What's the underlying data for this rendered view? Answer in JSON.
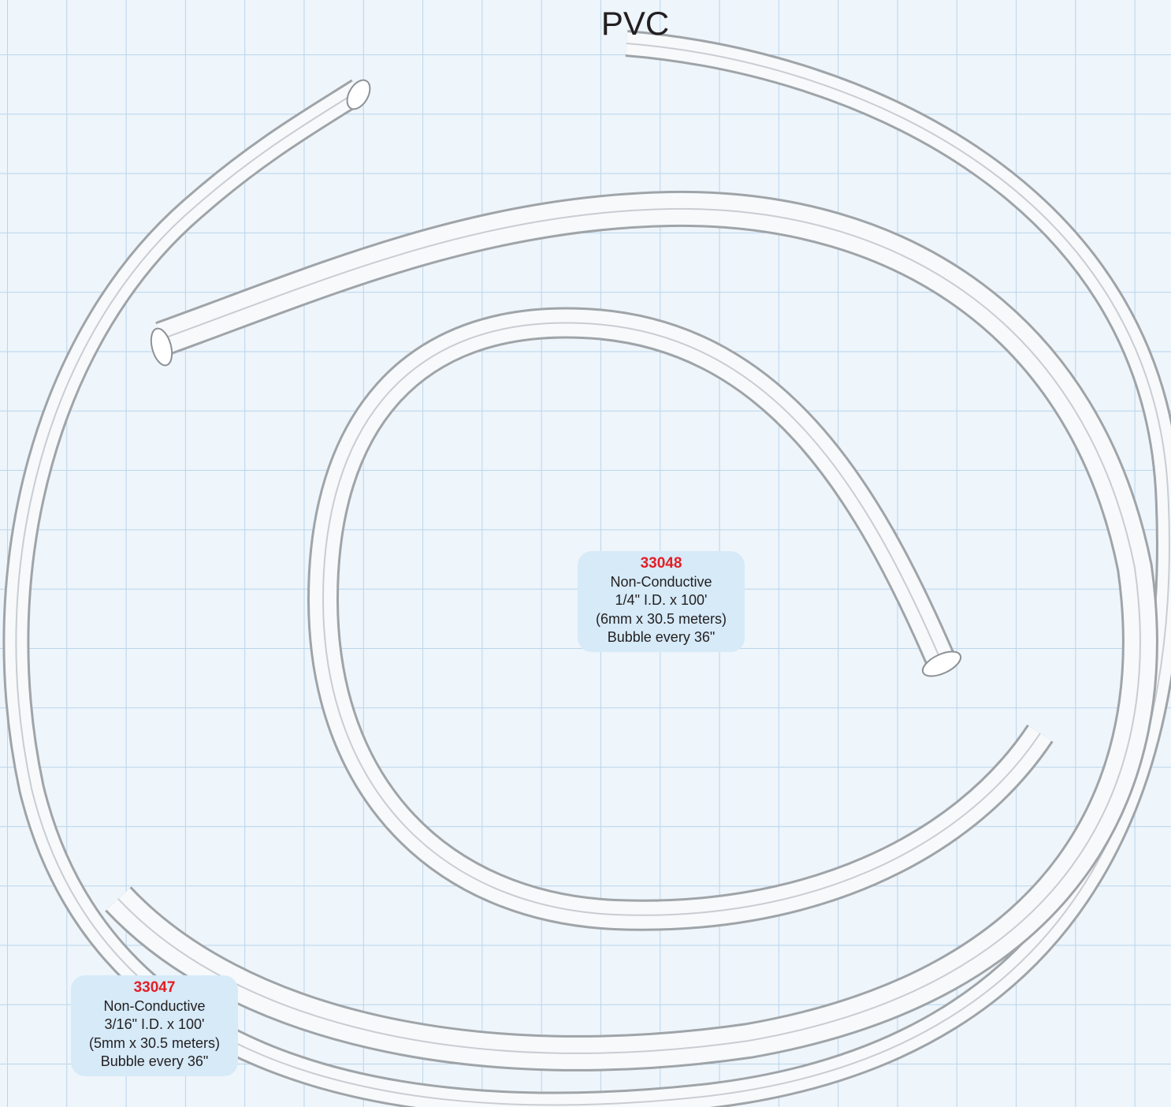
{
  "title": "PVC",
  "products": [
    {
      "number": "33048",
      "lines": [
        "Non-Conductive",
        "1/4\" I.D. x 100'",
        "(6mm x 30.5 meters)",
        "Bubble every 36\""
      ]
    },
    {
      "number": "33047",
      "lines": [
        "Non-Conductive",
        "3/16\" I.D. x 100'",
        "(5mm x 30.5 meters)",
        "Bubble every 36\""
      ]
    }
  ]
}
